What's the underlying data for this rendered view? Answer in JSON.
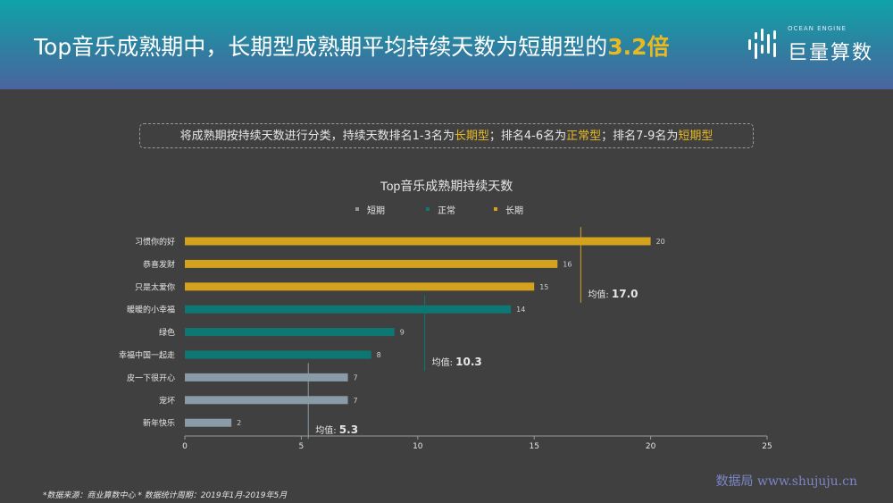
{
  "header": {
    "title_main": "Top音乐成熟期中，长期型成熟期平均持续天数为短期型的",
    "title_highlight": "3.2倍"
  },
  "logo": {
    "sub": "OCEAN ENGINE",
    "text": "巨量算数"
  },
  "note": {
    "p1": "将成熟期按持续天数进行分类，持续天数排名1-3名为",
    "t1": "长期型",
    "p2": "；排名4-6名为",
    "t2": "正常型",
    "p3": "；排名7-9名为",
    "t3": "短期型"
  },
  "footer": {
    "text": "*数据来源：商业算数中心 * 数据统计周期：2019年1月-2019年5月"
  },
  "watermark": {
    "text": "数据局 www.shujuju.cn"
  },
  "colors": {
    "short": "#8a9ba8",
    "normal": "#0d7873",
    "long": "#d4a21c",
    "axis": "#9a9a9a",
    "text": "#e6e6e6"
  },
  "chart_data": {
    "type": "bar",
    "orientation": "horizontal",
    "title": "Top音乐成熟期持续天数",
    "legend": [
      "短期",
      "正常",
      "长期"
    ],
    "categories": [
      "习惯你的好",
      "恭喜发财",
      "只是太爱你",
      "暖暖的小幸福",
      "绿色",
      "幸福中国一起走",
      "皮一下很开心",
      "宠坏",
      "新年快乐"
    ],
    "values": [
      20,
      16,
      15,
      14,
      9,
      8,
      7,
      7,
      2
    ],
    "groups": [
      "长期",
      "长期",
      "长期",
      "正常",
      "正常",
      "正常",
      "短期",
      "短期",
      "短期"
    ],
    "averages": [
      {
        "group": "长期",
        "label": "均值:",
        "value": 17.0,
        "text": "17.0"
      },
      {
        "group": "正常",
        "label": "均值:",
        "value": 10.3,
        "text": "10.3"
      },
      {
        "group": "短期",
        "label": "均值:",
        "value": 5.3,
        "text": "5.3"
      }
    ],
    "xlim": [
      0,
      25
    ],
    "xticks": [
      "0",
      "5",
      "10",
      "15",
      "20",
      "25"
    ]
  }
}
